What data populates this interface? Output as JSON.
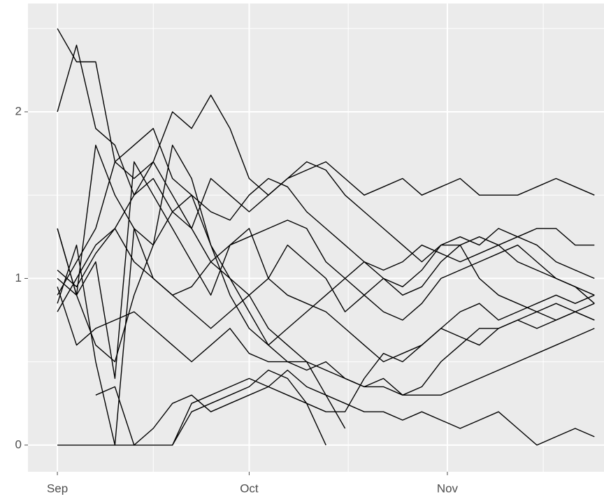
{
  "chart_data": {
    "type": "line",
    "x": [
      0,
      3,
      6,
      9,
      12,
      15,
      18,
      21,
      24,
      27,
      30,
      33,
      36,
      39,
      42,
      45,
      48,
      51,
      54,
      57,
      60,
      63,
      66,
      69,
      72,
      75,
      78,
      81,
      84
    ],
    "xlim": [
      -4.6,
      85.5
    ],
    "xticks": [
      {
        "value": 0,
        "label": "Sep"
      },
      {
        "value": 30,
        "label": "Oct"
      },
      {
        "value": 61,
        "label": "Nov"
      }
    ],
    "x_minor_grid": [
      15,
      45.5,
      76
    ],
    "ylim": [
      -0.16,
      2.65
    ],
    "yticks": [
      0,
      1,
      2
    ],
    "y_minor_grid": [
      0.5,
      1.5,
      2.5
    ],
    "grid": true,
    "color": "#000000",
    "series": [
      {
        "values": [
          2.5,
          2.3,
          2.3,
          1.7,
          1.6,
          1.7,
          1.5,
          1.3,
          1.1,
          1.0,
          0.9,
          0.7,
          0.6,
          0.5,
          0.3,
          0.1,
          null,
          null,
          null,
          null,
          null,
          null,
          null,
          null,
          null,
          null,
          null,
          null,
          null
        ]
      },
      {
        "values": [
          2.0,
          2.4,
          1.9,
          1.8,
          1.5,
          1.7,
          2.0,
          1.9,
          2.1,
          1.9,
          1.6,
          1.5,
          1.6,
          1.65,
          1.7,
          1.6,
          1.5,
          1.55,
          1.6,
          1.5,
          1.55,
          1.6,
          1.5,
          1.5,
          1.5,
          1.55,
          1.6,
          1.55,
          1.5
        ]
      },
      {
        "values": [
          0,
          0,
          0,
          0,
          0,
          0,
          0,
          0.2,
          0.25,
          0.3,
          0.35,
          0.45,
          0.4,
          0.25,
          0,
          null,
          null,
          null,
          null,
          null,
          null,
          null,
          null,
          null,
          null,
          null,
          null,
          null,
          null
        ]
      },
      {
        "values": [
          1.3,
          0.9,
          1.1,
          0.4,
          1.7,
          1.5,
          1.3,
          1.1,
          0.9,
          1.2,
          1.3,
          1.0,
          1.2,
          1.1,
          1.0,
          0.8,
          0.9,
          1.0,
          0.95,
          1.05,
          1.2,
          1.2,
          1.25,
          1.2,
          1.1,
          1.05,
          1.0,
          0.95,
          0.9
        ]
      },
      {
        "values": [
          0.8,
          1.0,
          1.2,
          1.3,
          1.5,
          1.6,
          1.4,
          1.3,
          1.6,
          1.5,
          1.4,
          1.5,
          1.6,
          1.7,
          1.65,
          1.5,
          1.4,
          1.3,
          1.2,
          1.1,
          1.2,
          1.25,
          1.2,
          1.3,
          1.25,
          1.3,
          1.3,
          1.2,
          1.2
        ]
      },
      {
        "values": [
          0.95,
          0.6,
          0.7,
          0.75,
          0.8,
          0.7,
          0.6,
          0.5,
          0.6,
          0.7,
          0.55,
          0.5,
          0.5,
          0.45,
          0.5,
          0.4,
          0.35,
          0.4,
          0.3,
          0.35,
          0.5,
          0.6,
          0.7,
          0.7,
          0.75,
          0.8,
          0.85,
          0.8,
          0.75
        ]
      },
      {
        "values": [
          1.05,
          0.95,
          1.15,
          1.3,
          1.1,
          1.0,
          0.9,
          0.95,
          1.1,
          1.2,
          1.25,
          1.3,
          1.35,
          1.3,
          1.1,
          1.0,
          0.9,
          0.8,
          0.75,
          0.85,
          1.0,
          1.05,
          1.1,
          1.15,
          1.2,
          1.1,
          1.0,
          0.95,
          0.85
        ]
      },
      {
        "values": [
          null,
          null,
          null,
          null,
          null,
          null,
          0.0,
          0.25,
          0.3,
          0.35,
          0.4,
          0.35,
          0.3,
          0.25,
          0.2,
          0.2,
          0.4,
          0.55,
          0.5,
          0.6,
          0.7,
          0.8,
          0.85,
          0.75,
          0.8,
          0.85,
          0.9,
          0.85,
          0.9
        ]
      },
      {
        "values": [
          1.0,
          0.9,
          1.8,
          1.5,
          1.3,
          1.0,
          0.9,
          0.8,
          0.7,
          0.8,
          0.9,
          1.0,
          0.9,
          0.85,
          0.8,
          0.7,
          0.6,
          0.5,
          0.55,
          0.6,
          0.7,
          0.65,
          0.6,
          0.7,
          0.75,
          0.7,
          0.75,
          0.8,
          0.75
        ]
      },
      {
        "values": [
          0.85,
          1.2,
          0.5,
          0.0,
          1.3,
          1.2,
          1.4,
          1.5,
          1.2,
          1.0,
          0.8,
          0.6,
          0.5,
          0.5,
          0.45,
          0.4,
          0.35,
          0.35,
          0.3,
          0.3,
          0.3,
          0.35,
          0.4,
          0.45,
          0.5,
          0.55,
          0.6,
          0.65,
          0.7
        ]
      },
      {
        "values": [
          1.3,
          0.9,
          0.6,
          0.5,
          0.9,
          1.2,
          1.8,
          1.6,
          1.2,
          0.9,
          0.7,
          0.6,
          0.7,
          0.8,
          0.9,
          1.0,
          1.1,
          1.05,
          1.1,
          1.2,
          1.15,
          1.1,
          1.15,
          1.2,
          1.25,
          1.2,
          1.1,
          1.05,
          1.0
        ]
      },
      {
        "values": [
          0.9,
          1.1,
          1.3,
          1.7,
          1.8,
          1.9,
          1.6,
          1.5,
          1.4,
          1.35,
          1.5,
          1.6,
          1.55,
          1.4,
          1.3,
          1.2,
          1.1,
          1.0,
          0.9,
          0.95,
          1.1,
          1.2,
          1.0,
          0.9,
          0.85,
          0.8,
          0.75,
          0.8,
          0.85
        ]
      },
      {
        "values": [
          null,
          null,
          0.3,
          0.35,
          0.0,
          0.1,
          0.25,
          0.3,
          0.2,
          0.25,
          0.3,
          0.35,
          0.45,
          0.35,
          0.3,
          0.25,
          0.2,
          0.2,
          0.15,
          0.2,
          0.15,
          0.1,
          0.15,
          0.2,
          0.1,
          0.0,
          0.05,
          0.1,
          0.05
        ]
      }
    ]
  }
}
